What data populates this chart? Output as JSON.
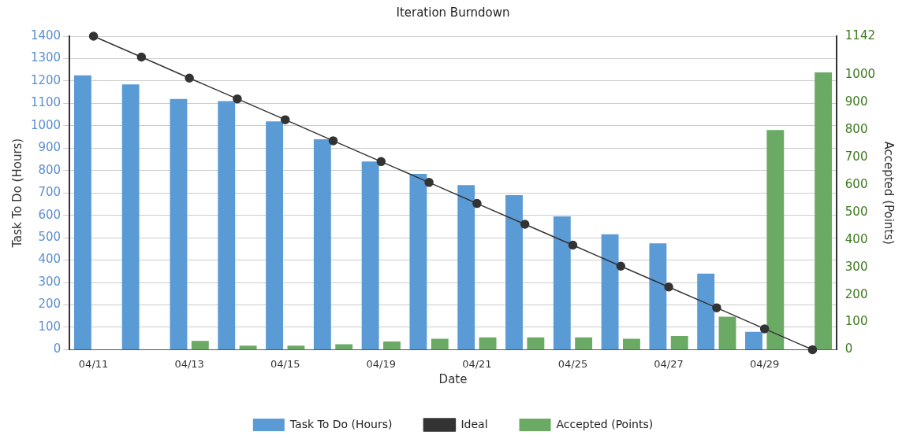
{
  "chart_data": {
    "type": "bar",
    "title": "Iteration Burndown",
    "xlabel": "Date",
    "ylabel": "Task To Do (Hours)",
    "y2label": "Accepted (Points)",
    "categories": [
      "04/11",
      null,
      "04/13",
      null,
      "04/15",
      null,
      "04/19",
      null,
      "04/21",
      null,
      "04/25",
      null,
      "04/27",
      null,
      "04/29",
      null
    ],
    "series": [
      {
        "name": "Task To Do (Hours)",
        "color": "#5b9bd5",
        "values": [
          1225,
          1185,
          1120,
          1110,
          1020,
          940,
          840,
          785,
          735,
          690,
          595,
          515,
          475,
          340,
          80,
          null
        ]
      },
      {
        "name": "Ideal",
        "type": "line",
        "color": "#333333",
        "marker": "circle",
        "values": [
          1400,
          1307,
          1213,
          1120,
          1027,
          933,
          840,
          747,
          653,
          560,
          467,
          373,
          280,
          187,
          93,
          0
        ]
      },
      {
        "name": "Accepted (Points)",
        "axis": "y2",
        "color": "#6aaa64",
        "values": [
          null,
          null,
          32,
          15,
          15,
          20,
          30,
          40,
          45,
          45,
          45,
          40,
          50,
          120,
          800,
          1010
        ]
      }
    ],
    "ylim": [
      0,
      1400
    ],
    "yticks": [
      0,
      100,
      200,
      300,
      400,
      500,
      600,
      700,
      800,
      900,
      1000,
      1100,
      1200,
      1300,
      1400
    ],
    "y2lim": [
      0,
      1142
    ],
    "y2ticks": [
      0,
      100,
      200,
      300,
      400,
      500,
      600,
      700,
      800,
      900,
      1000,
      1142
    ],
    "grid": "y",
    "legend": "bottom"
  }
}
